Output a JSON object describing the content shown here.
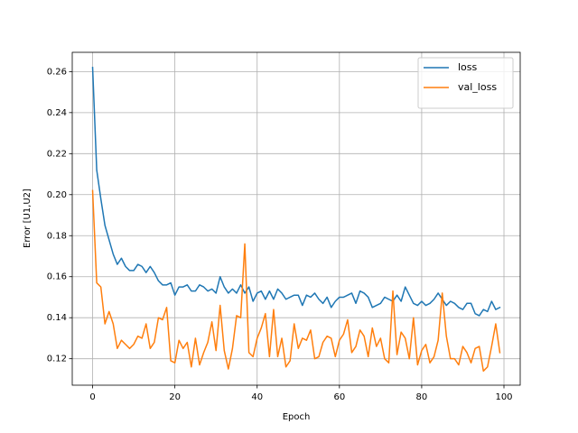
{
  "chart_data": {
    "type": "line",
    "xlabel": "Epoch",
    "ylabel": "Error [U1,U2]",
    "x": [
      0,
      1,
      2,
      3,
      4,
      5,
      6,
      7,
      8,
      9,
      10,
      11,
      12,
      13,
      14,
      15,
      16,
      17,
      18,
      19,
      20,
      21,
      22,
      23,
      24,
      25,
      26,
      27,
      28,
      29,
      30,
      31,
      32,
      33,
      34,
      35,
      36,
      37,
      38,
      39,
      40,
      41,
      42,
      43,
      44,
      45,
      46,
      47,
      48,
      49,
      50,
      51,
      52,
      53,
      54,
      55,
      56,
      57,
      58,
      59,
      60,
      61,
      62,
      63,
      64,
      65,
      66,
      67,
      68,
      69,
      70,
      71,
      72,
      73,
      74,
      75,
      76,
      77,
      78,
      79,
      80,
      81,
      82,
      83,
      84,
      85,
      86,
      87,
      88,
      89,
      90,
      91,
      92,
      93,
      94,
      95,
      96,
      97,
      98,
      99
    ],
    "series": [
      {
        "name": "loss",
        "color": "#1f77b4",
        "values": [
          0.262,
          0.212,
          0.198,
          0.185,
          0.178,
          0.171,
          0.166,
          0.169,
          0.165,
          0.163,
          0.163,
          0.166,
          0.165,
          0.162,
          0.165,
          0.162,
          0.158,
          0.156,
          0.156,
          0.157,
          0.151,
          0.155,
          0.155,
          0.156,
          0.153,
          0.153,
          0.156,
          0.155,
          0.153,
          0.154,
          0.152,
          0.16,
          0.155,
          0.152,
          0.154,
          0.152,
          0.156,
          0.152,
          0.155,
          0.148,
          0.152,
          0.153,
          0.149,
          0.153,
          0.149,
          0.154,
          0.152,
          0.149,
          0.15,
          0.151,
          0.151,
          0.146,
          0.151,
          0.15,
          0.152,
          0.149,
          0.147,
          0.15,
          0.145,
          0.148,
          0.15,
          0.15,
          0.151,
          0.152,
          0.147,
          0.153,
          0.152,
          0.15,
          0.145,
          0.146,
          0.147,
          0.15,
          0.149,
          0.148,
          0.151,
          0.148,
          0.155,
          0.151,
          0.147,
          0.146,
          0.148,
          0.146,
          0.147,
          0.149,
          0.152,
          0.149,
          0.146,
          0.148,
          0.147,
          0.145,
          0.144,
          0.147,
          0.147,
          0.142,
          0.141,
          0.144,
          0.143,
          0.148,
          0.144,
          0.145
        ]
      },
      {
        "name": "val_loss",
        "color": "#ff7f0e",
        "values": [
          0.202,
          0.157,
          0.155,
          0.137,
          0.143,
          0.137,
          0.125,
          0.129,
          0.127,
          0.125,
          0.127,
          0.131,
          0.13,
          0.137,
          0.125,
          0.128,
          0.14,
          0.139,
          0.145,
          0.119,
          0.118,
          0.129,
          0.125,
          0.128,
          0.116,
          0.13,
          0.117,
          0.123,
          0.128,
          0.138,
          0.124,
          0.146,
          0.124,
          0.115,
          0.125,
          0.141,
          0.14,
          0.176,
          0.123,
          0.121,
          0.13,
          0.135,
          0.142,
          0.121,
          0.144,
          0.121,
          0.13,
          0.116,
          0.119,
          0.137,
          0.125,
          0.13,
          0.129,
          0.134,
          0.12,
          0.121,
          0.128,
          0.131,
          0.13,
          0.121,
          0.129,
          0.132,
          0.139,
          0.123,
          0.126,
          0.134,
          0.131,
          0.121,
          0.135,
          0.126,
          0.13,
          0.12,
          0.118,
          0.153,
          0.122,
          0.133,
          0.13,
          0.12,
          0.14,
          0.117,
          0.124,
          0.127,
          0.118,
          0.121,
          0.129,
          0.152,
          0.131,
          0.12,
          0.12,
          0.117,
          0.126,
          0.123,
          0.118,
          0.125,
          0.126,
          0.114,
          0.116,
          0.126,
          0.137,
          0.123
        ]
      }
    ],
    "xlim": [
      -4.95,
      103.95
    ],
    "ylim": [
      0.1071,
      0.2694
    ],
    "xticks": [
      0,
      20,
      40,
      60,
      80,
      100
    ],
    "yticks": [
      0.12,
      0.14,
      0.16,
      0.18,
      {
        "value": 0.2,
        "label": "0.20"
      },
      0.22,
      0.24,
      0.26
    ],
    "grid": true,
    "legend": "upper right"
  }
}
